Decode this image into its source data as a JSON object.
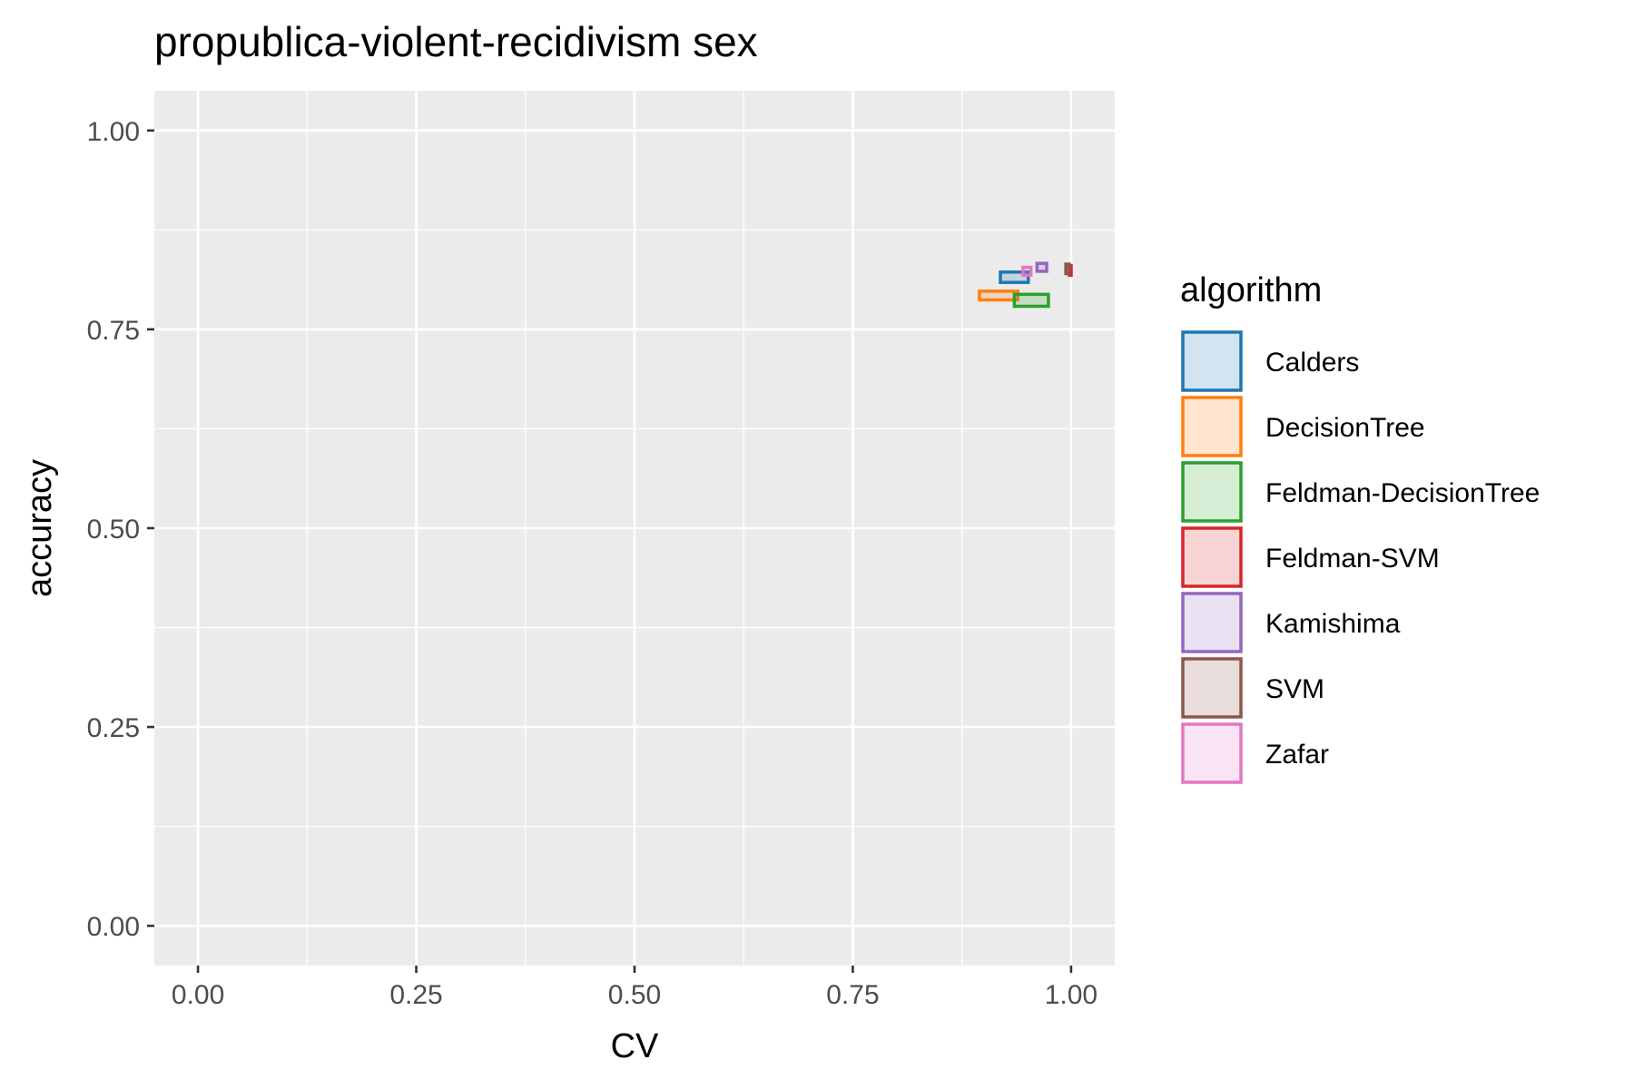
{
  "chart_data": {
    "type": "scatter",
    "title": "propublica-violent-recidivism sex",
    "xlabel": "CV",
    "ylabel": "accuracy",
    "xlim": [
      -0.05,
      1.05
    ],
    "ylim": [
      -0.05,
      1.05
    ],
    "x_ticks": [
      "0.00",
      "0.25",
      "0.50",
      "0.75",
      "1.00"
    ],
    "y_ticks": [
      "0.00",
      "0.25",
      "0.50",
      "0.75",
      "1.00"
    ],
    "x_tick_values": [
      0,
      0.25,
      0.5,
      0.75,
      1.0
    ],
    "y_tick_values": [
      0,
      0.25,
      0.5,
      0.75,
      1.0
    ],
    "grid": true,
    "legend": {
      "title": "algorithm",
      "position": "right"
    },
    "mark": "rectangle showing range of CV (x) and accuracy (y) across runs",
    "series": [
      {
        "name": "Calders",
        "color": "#1f77b4",
        "x_range": [
          0.919,
          0.951
        ],
        "y_range": [
          0.809,
          0.822
        ]
      },
      {
        "name": "DecisionTree",
        "color": "#ff7f0e",
        "x_range": [
          0.895,
          0.939
        ],
        "y_range": [
          0.787,
          0.798
        ]
      },
      {
        "name": "Feldman-DecisionTree",
        "color": "#2ca02c",
        "x_range": [
          0.935,
          0.974
        ],
        "y_range": [
          0.779,
          0.794
        ]
      },
      {
        "name": "Feldman-SVM",
        "color": "#d62728",
        "x_range": [
          0.998,
          1.0
        ],
        "y_range": [
          0.818,
          0.83
        ]
      },
      {
        "name": "Kamishima",
        "color": "#9467bd",
        "x_range": [
          0.961,
          0.972
        ],
        "y_range": [
          0.823,
          0.833
        ]
      },
      {
        "name": "SVM",
        "color": "#8c564b",
        "x_range": [
          0.994,
          0.998
        ],
        "y_range": [
          0.82,
          0.832
        ]
      },
      {
        "name": "Zafar",
        "color": "#e377c2",
        "x_range": [
          0.945,
          0.954
        ],
        "y_range": [
          0.818,
          0.828
        ]
      }
    ]
  }
}
